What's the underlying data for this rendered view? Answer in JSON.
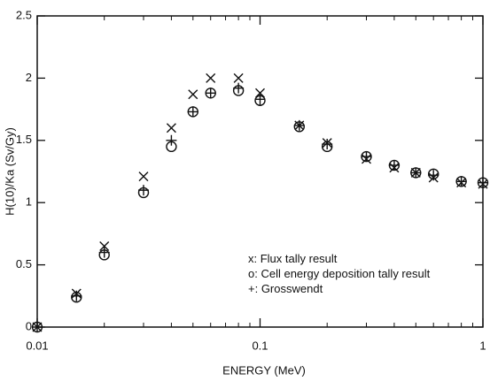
{
  "chart_data": {
    "type": "scatter",
    "xlabel": "ENERGY (MeV)",
    "ylabel": "H(10)/Ka (Sv/Gy)",
    "x": [
      0.01,
      0.015,
      0.02,
      0.03,
      0.04,
      0.05,
      0.06,
      0.08,
      0.1,
      0.15,
      0.2,
      0.3,
      0.4,
      0.5,
      0.6,
      0.8,
      1
    ],
    "series": [
      {
        "name": "x: Flux tally result",
        "marker": "x",
        "color": "#111111",
        "values": [
          0.0,
          0.27,
          0.65,
          1.21,
          1.6,
          1.87,
          2.0,
          2.0,
          1.88,
          1.62,
          1.48,
          1.35,
          1.28,
          1.24,
          1.2,
          1.16,
          1.15
        ]
      },
      {
        "name": "o: Cell energy deposition tally result",
        "marker": "o",
        "color": "#111111",
        "values": [
          0.0,
          0.24,
          0.58,
          1.08,
          1.45,
          1.73,
          1.88,
          1.9,
          1.82,
          1.61,
          1.45,
          1.37,
          1.3,
          1.24,
          1.23,
          1.17,
          1.16
        ]
      },
      {
        "name": "+: Grosswendt",
        "marker": "+",
        "color": "#111111",
        "values": [
          0.0,
          0.25,
          0.6,
          1.1,
          1.5,
          1.73,
          1.88,
          1.92,
          1.83,
          1.62,
          1.47,
          1.37,
          1.3,
          1.24,
          1.22,
          1.17,
          1.16
        ]
      }
    ],
    "xlog": true,
    "xlim": [
      0.01,
      1
    ],
    "xticks": [
      0.01,
      0.1,
      1
    ],
    "xminorticks": [
      0.02,
      0.03,
      0.04,
      0.05,
      0.06,
      0.07,
      0.08,
      0.09,
      0.2,
      0.3,
      0.4,
      0.5,
      0.6,
      0.7,
      0.8,
      0.9
    ],
    "ylim": [
      0,
      2.5
    ],
    "yticks": [
      0,
      0.5,
      1,
      1.5,
      2,
      2.5
    ],
    "grid": false
  }
}
